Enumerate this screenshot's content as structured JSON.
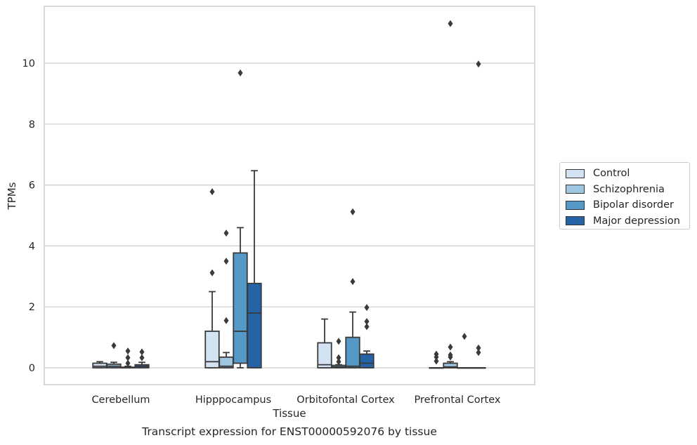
{
  "chart_data": {
    "type": "box",
    "xlabel": "Tissue",
    "ylabel": "TPMs",
    "caption": "Transcript expression for ENST00000592076 by tissue",
    "ylim": [
      -0.55,
      11.9
    ],
    "yticks": [
      0,
      2,
      4,
      6,
      8,
      10
    ],
    "grid": true,
    "legend_position": "right",
    "categories": [
      "Cerebellum",
      "Hipppocampus",
      "Orbitofontal Cortex",
      "Prefrontal Cortex"
    ],
    "series": [
      {
        "name": "Control",
        "color": "#d4e3f3",
        "boxes": [
          {
            "q1": 0,
            "median": 0.05,
            "q3": 0.15,
            "wlo": 0,
            "whi": 0.2,
            "fliers": []
          },
          {
            "q1": 0,
            "median": 0.2,
            "q3": 1.2,
            "wlo": 0,
            "whi": 2.5,
            "fliers": [
              3.12,
              5.78
            ]
          },
          {
            "q1": 0,
            "median": 0.1,
            "q3": 0.82,
            "wlo": 0,
            "whi": 1.6,
            "fliers": []
          },
          {
            "q1": 0,
            "median": 0,
            "q3": 0,
            "wlo": 0,
            "whi": 0,
            "fliers": [
              0.22,
              0.35,
              0.45
            ]
          }
        ]
      },
      {
        "name": "Schizophrenia",
        "color": "#9ec6e0",
        "boxes": [
          {
            "q1": 0,
            "median": 0.05,
            "q3": 0.12,
            "wlo": 0,
            "whi": 0.18,
            "fliers": [
              0.73
            ]
          },
          {
            "q1": 0,
            "median": 0.05,
            "q3": 0.35,
            "wlo": 0,
            "whi": 0.5,
            "fliers": [
              1.55,
              3.5,
              4.42
            ]
          },
          {
            "q1": 0,
            "median": 0.03,
            "q3": 0.08,
            "wlo": 0,
            "whi": 0.1,
            "fliers": [
              0.2,
              0.33,
              0.87
            ]
          },
          {
            "q1": 0,
            "median": 0.03,
            "q3": 0.15,
            "wlo": 0,
            "whi": 0.2,
            "fliers": [
              0.35,
              0.42,
              0.68,
              11.3
            ]
          }
        ]
      },
      {
        "name": "Bipolar disorder",
        "color": "#5599c8",
        "boxes": [
          {
            "q1": 0,
            "median": 0,
            "q3": 0.02,
            "wlo": 0,
            "whi": 0.05,
            "fliers": [
              0.15,
              0.33,
              0.55
            ]
          },
          {
            "q1": 0.15,
            "median": 1.2,
            "q3": 3.77,
            "wlo": 0,
            "whi": 4.6,
            "fliers": [
              9.68
            ]
          },
          {
            "q1": 0,
            "median": 0.05,
            "q3": 1.0,
            "wlo": 0,
            "whi": 1.83,
            "fliers": [
              2.83,
              5.12
            ]
          },
          {
            "q1": 0,
            "median": 0,
            "q3": 0,
            "wlo": 0,
            "whi": 0,
            "fliers": [
              1.03
            ]
          }
        ]
      },
      {
        "name": "Major depression",
        "color": "#2464a6",
        "boxes": [
          {
            "q1": 0,
            "median": 0.05,
            "q3": 0.1,
            "wlo": 0,
            "whi": 0.18,
            "fliers": [
              0.33,
              0.52
            ]
          },
          {
            "q1": 0,
            "median": 1.8,
            "q3": 2.77,
            "wlo": 0,
            "whi": 6.47,
            "fliers": []
          },
          {
            "q1": 0,
            "median": 0.15,
            "q3": 0.45,
            "wlo": 0,
            "whi": 0.55,
            "fliers": [
              1.35,
              1.52,
              1.98
            ]
          },
          {
            "q1": 0,
            "median": 0,
            "q3": 0,
            "wlo": 0,
            "whi": 0,
            "fliers": [
              0.5,
              0.65,
              9.97
            ]
          }
        ]
      }
    ]
  }
}
